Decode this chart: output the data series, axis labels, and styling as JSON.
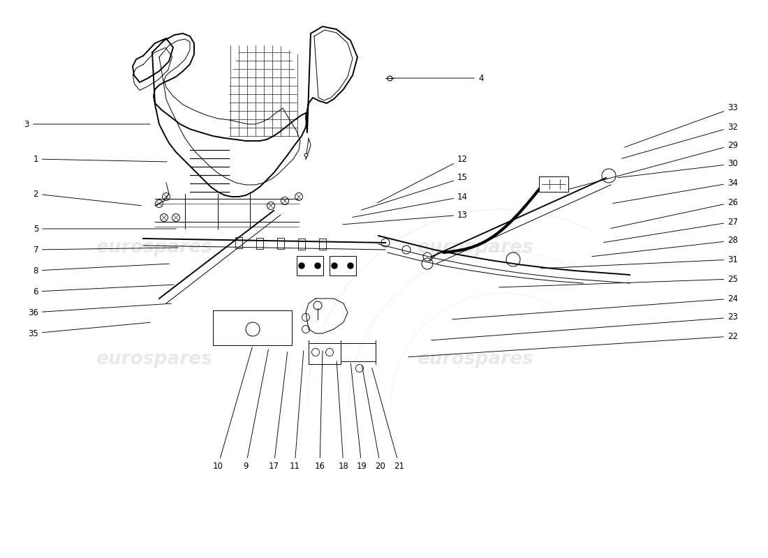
{
  "bg_color": "#ffffff",
  "line_color": "#000000",
  "lw_main": 1.4,
  "lw_thin": 0.7,
  "lw_thick": 3.0,
  "label_fs": 8.5,
  "left_labels": [
    [
      3,
      0.42,
      6.22,
      2.18,
      6.22
    ],
    [
      1,
      0.55,
      5.72,
      2.42,
      5.68
    ],
    [
      2,
      0.55,
      5.22,
      2.05,
      5.05
    ],
    [
      5,
      0.55,
      4.72,
      2.55,
      4.72
    ],
    [
      7,
      0.55,
      4.42,
      2.58,
      4.45
    ],
    [
      8,
      0.55,
      4.12,
      2.45,
      4.22
    ],
    [
      6,
      0.55,
      3.82,
      2.52,
      3.92
    ],
    [
      36,
      0.55,
      3.52,
      2.48,
      3.65
    ],
    [
      35,
      0.55,
      3.22,
      2.18,
      3.38
    ]
  ],
  "bottom_labels": [
    [
      10,
      3.12,
      1.38,
      3.62,
      3.05
    ],
    [
      9,
      3.52,
      1.38,
      3.85,
      3.02
    ],
    [
      17,
      3.92,
      1.38,
      4.12,
      2.98
    ],
    [
      11,
      4.22,
      1.38,
      4.35,
      3.0
    ],
    [
      16,
      4.58,
      1.38,
      4.62,
      3.0
    ],
    [
      18,
      4.92,
      1.38,
      4.82,
      2.85
    ],
    [
      19,
      5.18,
      1.38,
      5.02,
      2.82
    ],
    [
      20,
      5.45,
      1.38,
      5.18,
      2.78
    ],
    [
      21,
      5.72,
      1.38,
      5.32,
      2.75
    ]
  ],
  "right_labels": [
    [
      33,
      10.42,
      6.45,
      8.92,
      5.88
    ],
    [
      32,
      10.42,
      6.18,
      8.88,
      5.72
    ],
    [
      29,
      10.42,
      5.92,
      8.12,
      5.28
    ],
    [
      30,
      10.42,
      5.65,
      8.82,
      5.45
    ],
    [
      34,
      10.42,
      5.38,
      8.75,
      5.08
    ],
    [
      26,
      10.42,
      5.1,
      8.72,
      4.72
    ],
    [
      27,
      10.42,
      4.82,
      8.62,
      4.52
    ],
    [
      28,
      10.42,
      4.55,
      8.45,
      4.32
    ],
    [
      31,
      10.42,
      4.28,
      7.72,
      4.15
    ],
    [
      25,
      10.42,
      4.0,
      7.12,
      3.88
    ],
    [
      24,
      10.42,
      3.72,
      6.45,
      3.42
    ],
    [
      23,
      10.42,
      3.45,
      6.15,
      3.12
    ],
    [
      22,
      10.42,
      3.18,
      5.82,
      2.88
    ]
  ],
  "mid_labels": [
    [
      12,
      6.55,
      5.72,
      5.38,
      5.08
    ],
    [
      15,
      6.55,
      5.45,
      5.15,
      4.98
    ],
    [
      14,
      6.55,
      5.18,
      5.02,
      4.88
    ],
    [
      13,
      6.55,
      4.92,
      4.88,
      4.78
    ],
    [
      4,
      6.85,
      6.88,
      5.58,
      6.88
    ]
  ]
}
